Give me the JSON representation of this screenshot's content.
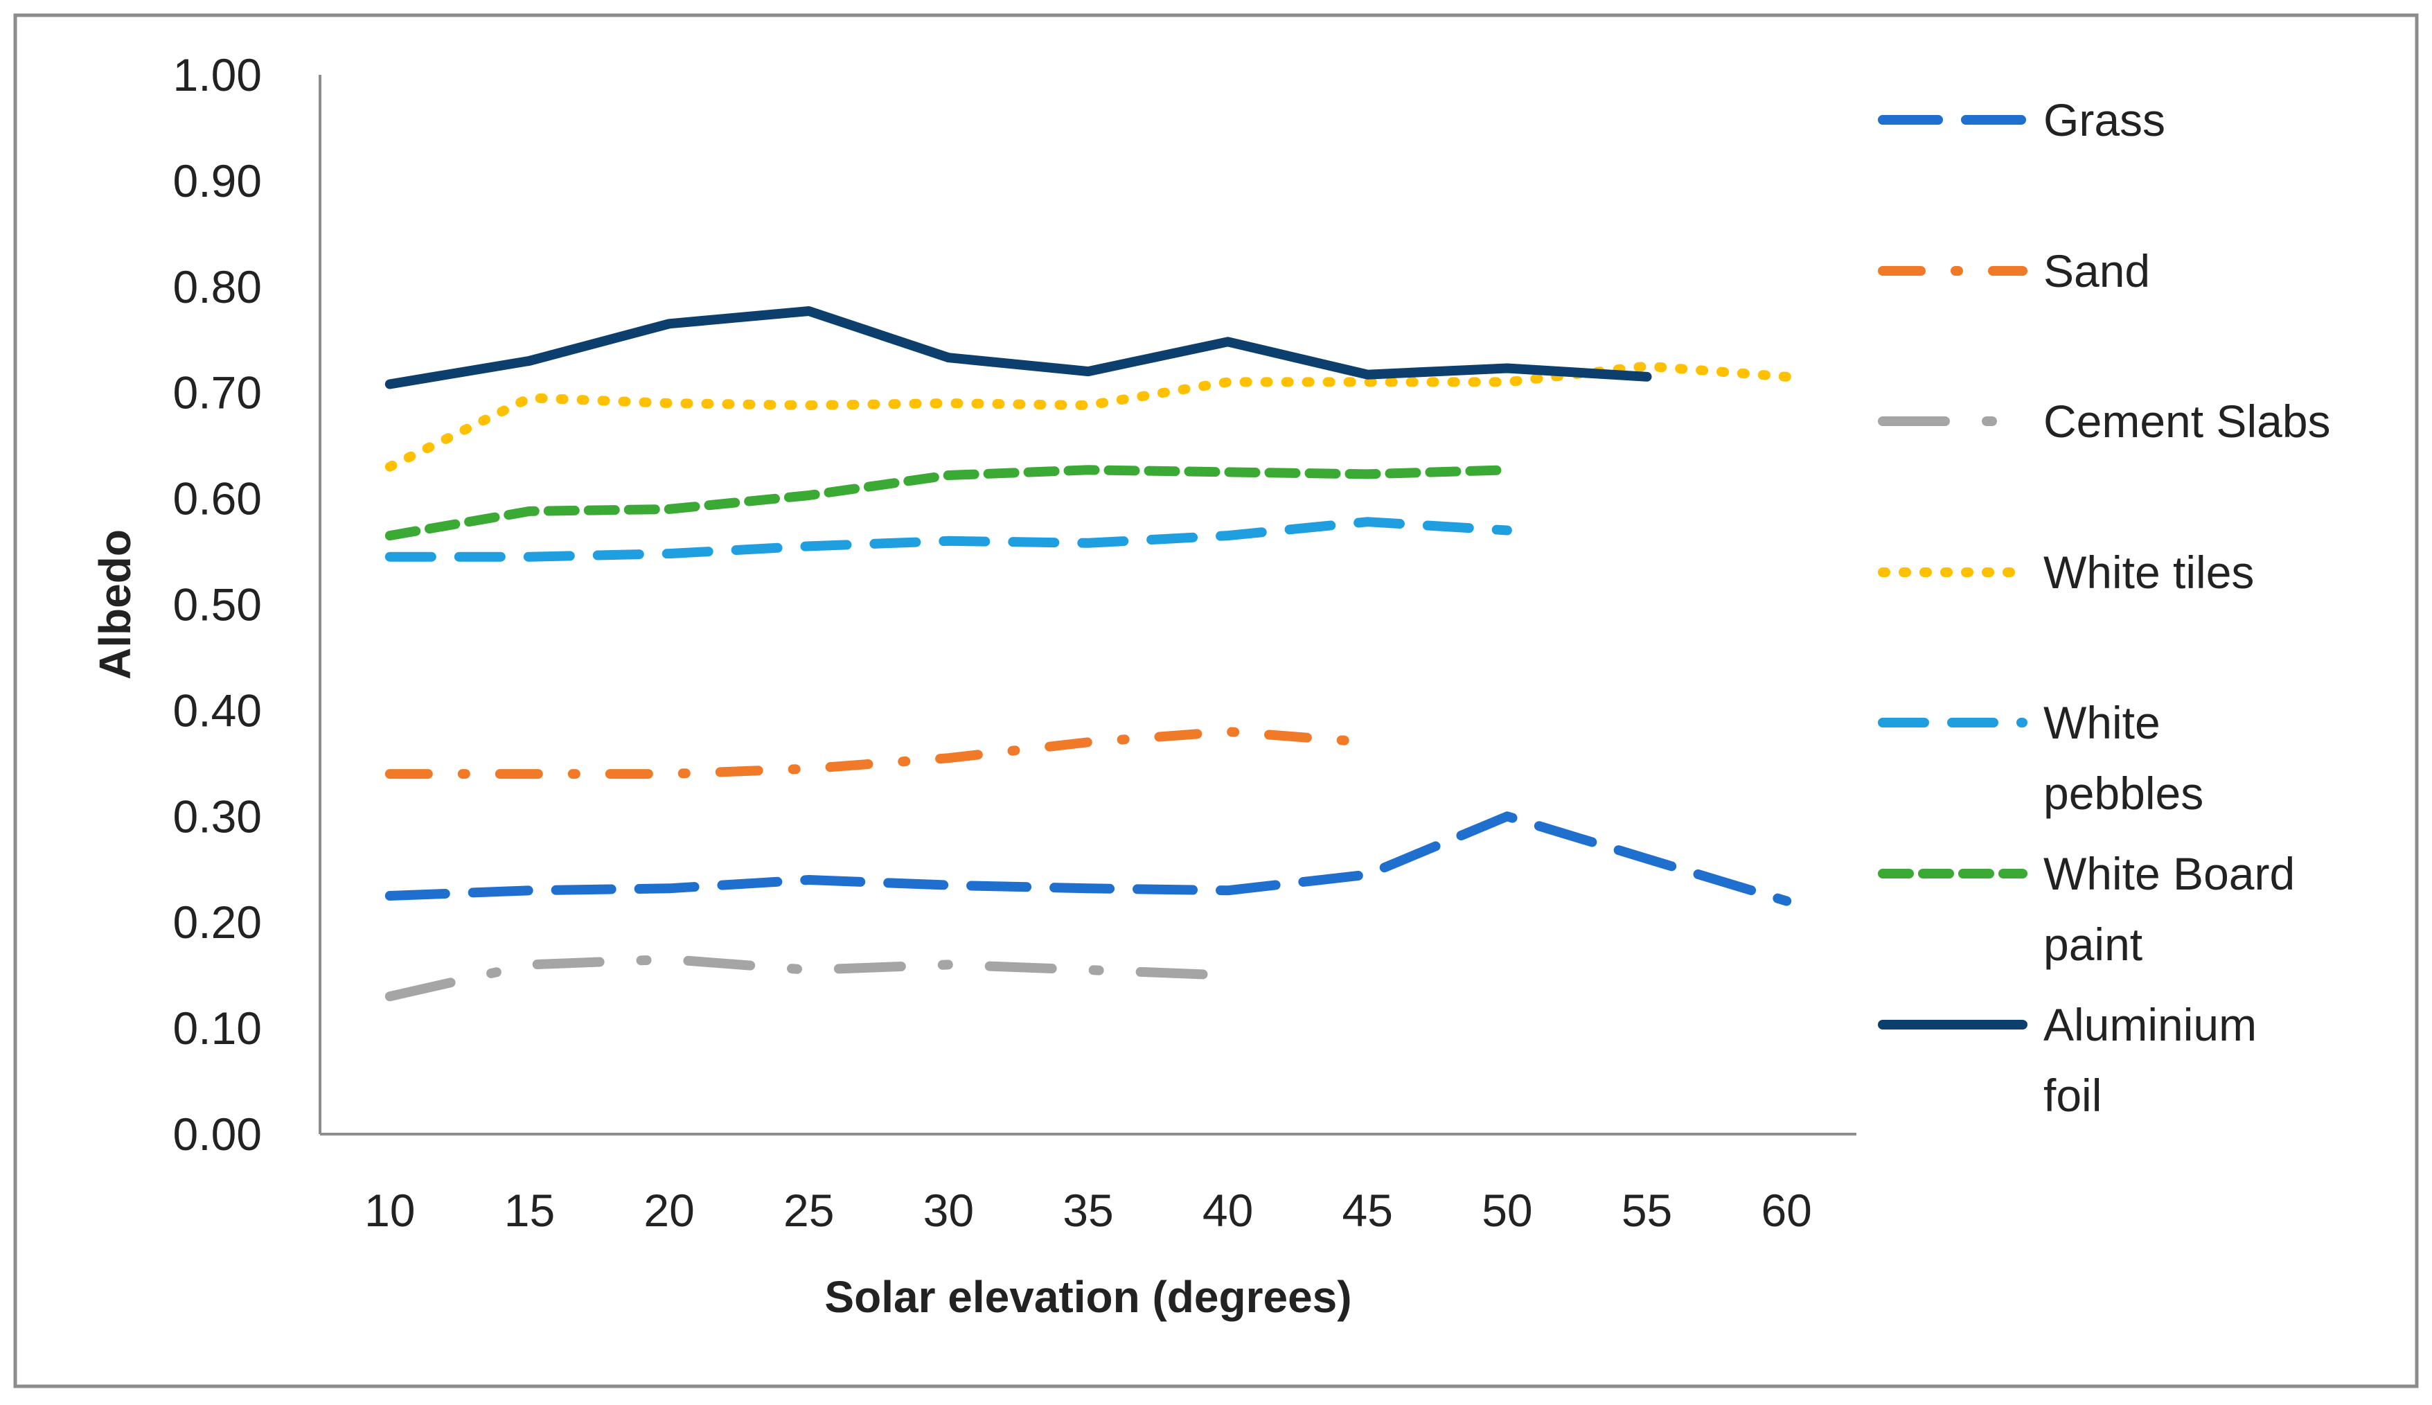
{
  "chart_data": {
    "type": "line",
    "title": "",
    "xlabel": "Solar elevation (degrees)",
    "ylabel": "Albedo",
    "x": [
      10,
      15,
      20,
      25,
      30,
      35,
      40,
      45,
      50,
      55,
      60
    ],
    "ylim": [
      0,
      1.0
    ],
    "y_ticks": [
      "0.00",
      "0.10",
      "0.20",
      "0.30",
      "0.40",
      "0.50",
      "0.60",
      "0.70",
      "0.80",
      "0.90",
      "1.00"
    ],
    "grid": false,
    "legend_position": "right",
    "series": [
      {
        "name": "Grass",
        "color": "#1f6fcf",
        "dash": "long-dash",
        "values": [
          0.225,
          0.23,
          0.232,
          0.24,
          0.235,
          0.232,
          0.23,
          0.245,
          0.3,
          0.26,
          0.22
        ]
      },
      {
        "name": "Sand",
        "color": "#f07a28",
        "dash": "dash-dot",
        "values": [
          0.34,
          0.34,
          0.34,
          0.345,
          0.355,
          0.37,
          0.38,
          0.37,
          null,
          null,
          null
        ]
      },
      {
        "name": "Cement Slabs",
        "color": "#a5a5a5",
        "dash": "long-dash-dot",
        "values": [
          0.13,
          0.16,
          0.165,
          0.155,
          0.16,
          0.155,
          0.15,
          null,
          null,
          null,
          null
        ]
      },
      {
        "name": "White tiles",
        "color": "#ffc000",
        "dash": "dot",
        "values": [
          0.63,
          0.695,
          0.69,
          0.688,
          0.69,
          0.688,
          0.71,
          0.71,
          0.71,
          0.725,
          0.715
        ]
      },
      {
        "name": "White pebbles",
        "color": "#1f9fe0",
        "dash": "dash",
        "values": [
          0.545,
          0.545,
          0.548,
          0.555,
          0.56,
          0.558,
          0.565,
          0.578,
          0.57,
          null,
          null
        ]
      },
      {
        "name": "White Board paint",
        "color": "#3aaa35",
        "dash": "short-dash",
        "values": [
          0.565,
          0.588,
          0.59,
          0.603,
          0.622,
          0.627,
          0.625,
          0.623,
          0.627,
          null,
          null
        ]
      },
      {
        "name": "Aluminium foil",
        "color": "#0c3f6e",
        "dash": "solid",
        "values": [
          0.708,
          0.73,
          0.765,
          0.777,
          0.733,
          0.72,
          0.748,
          0.717,
          0.723,
          0.715,
          null
        ]
      }
    ]
  }
}
